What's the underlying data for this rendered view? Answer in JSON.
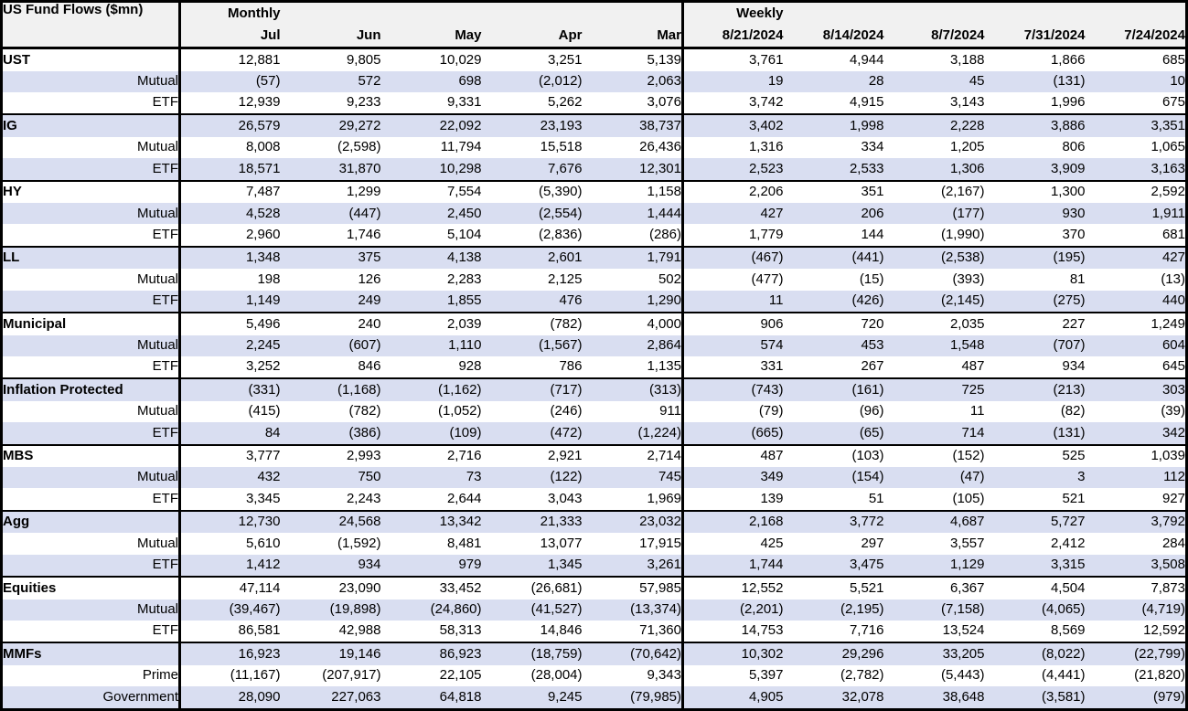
{
  "colors": {
    "row_shade": "#d9def1",
    "header_bg": "#f1f1f1",
    "border": "#000000",
    "text": "#000000",
    "background": "#ffffff"
  },
  "chart_data": {
    "type": "table",
    "title": "US Fund Flows ($mn)",
    "column_groups": [
      {
        "label": "Monthly",
        "columns": [
          "Jul",
          "Jun",
          "May",
          "Apr",
          "Mar"
        ]
      },
      {
        "label": "Weekly",
        "columns": [
          "8/21/2024",
          "8/14/2024",
          "8/7/2024",
          "7/31/2024",
          "7/24/2024"
        ]
      }
    ],
    "groups": [
      {
        "rows": [
          {
            "label": "UST",
            "monthly": [
              "12,881",
              "9,805",
              "10,029",
              "3,251",
              "5,139"
            ],
            "weekly": [
              "3,761",
              "4,944",
              "3,188",
              "1,866",
              "685"
            ]
          },
          {
            "label": "Mutual",
            "monthly": [
              "(57)",
              "572",
              "698",
              "(2,012)",
              "2,063"
            ],
            "weekly": [
              "19",
              "28",
              "45",
              "(131)",
              "10"
            ]
          },
          {
            "label": "ETF",
            "monthly": [
              "12,939",
              "9,233",
              "9,331",
              "5,262",
              "3,076"
            ],
            "weekly": [
              "3,742",
              "4,915",
              "3,143",
              "1,996",
              "675"
            ]
          }
        ]
      },
      {
        "rows": [
          {
            "label": "IG",
            "monthly": [
              "26,579",
              "29,272",
              "22,092",
              "23,193",
              "38,737"
            ],
            "weekly": [
              "3,402",
              "1,998",
              "2,228",
              "3,886",
              "3,351"
            ]
          },
          {
            "label": "Mutual",
            "monthly": [
              "8,008",
              "(2,598)",
              "11,794",
              "15,518",
              "26,436"
            ],
            "weekly": [
              "1,316",
              "334",
              "1,205",
              "806",
              "1,065"
            ]
          },
          {
            "label": "ETF",
            "monthly": [
              "18,571",
              "31,870",
              "10,298",
              "7,676",
              "12,301"
            ],
            "weekly": [
              "2,523",
              "2,533",
              "1,306",
              "3,909",
              "3,163"
            ]
          }
        ]
      },
      {
        "rows": [
          {
            "label": "HY",
            "monthly": [
              "7,487",
              "1,299",
              "7,554",
              "(5,390)",
              "1,158"
            ],
            "weekly": [
              "2,206",
              "351",
              "(2,167)",
              "1,300",
              "2,592"
            ]
          },
          {
            "label": "Mutual",
            "monthly": [
              "4,528",
              "(447)",
              "2,450",
              "(2,554)",
              "1,444"
            ],
            "weekly": [
              "427",
              "206",
              "(177)",
              "930",
              "1,911"
            ]
          },
          {
            "label": "ETF",
            "monthly": [
              "2,960",
              "1,746",
              "5,104",
              "(2,836)",
              "(286)"
            ],
            "weekly": [
              "1,779",
              "144",
              "(1,990)",
              "370",
              "681"
            ]
          }
        ]
      },
      {
        "rows": [
          {
            "label": "LL",
            "monthly": [
              "1,348",
              "375",
              "4,138",
              "2,601",
              "1,791"
            ],
            "weekly": [
              "(467)",
              "(441)",
              "(2,538)",
              "(195)",
              "427"
            ]
          },
          {
            "label": "Mutual",
            "monthly": [
              "198",
              "126",
              "2,283",
              "2,125",
              "502"
            ],
            "weekly": [
              "(477)",
              "(15)",
              "(393)",
              "81",
              "(13)"
            ]
          },
          {
            "label": "ETF",
            "monthly": [
              "1,149",
              "249",
              "1,855",
              "476",
              "1,290"
            ],
            "weekly": [
              "11",
              "(426)",
              "(2,145)",
              "(275)",
              "440"
            ]
          }
        ]
      },
      {
        "rows": [
          {
            "label": "Municipal",
            "monthly": [
              "5,496",
              "240",
              "2,039",
              "(782)",
              "4,000"
            ],
            "weekly": [
              "906",
              "720",
              "2,035",
              "227",
              "1,249"
            ]
          },
          {
            "label": "Mutual",
            "monthly": [
              "2,245",
              "(607)",
              "1,110",
              "(1,567)",
              "2,864"
            ],
            "weekly": [
              "574",
              "453",
              "1,548",
              "(707)",
              "604"
            ]
          },
          {
            "label": "ETF",
            "monthly": [
              "3,252",
              "846",
              "928",
              "786",
              "1,135"
            ],
            "weekly": [
              "331",
              "267",
              "487",
              "934",
              "645"
            ]
          }
        ]
      },
      {
        "rows": [
          {
            "label": "Inflation Protected",
            "monthly": [
              "(331)",
              "(1,168)",
              "(1,162)",
              "(717)",
              "(313)"
            ],
            "weekly": [
              "(743)",
              "(161)",
              "725",
              "(213)",
              "303"
            ]
          },
          {
            "label": "Mutual",
            "monthly": [
              "(415)",
              "(782)",
              "(1,052)",
              "(246)",
              "911"
            ],
            "weekly": [
              "(79)",
              "(96)",
              "11",
              "(82)",
              "(39)"
            ]
          },
          {
            "label": "ETF",
            "monthly": [
              "84",
              "(386)",
              "(109)",
              "(472)",
              "(1,224)"
            ],
            "weekly": [
              "(665)",
              "(65)",
              "714",
              "(131)",
              "342"
            ]
          }
        ]
      },
      {
        "rows": [
          {
            "label": "MBS",
            "monthly": [
              "3,777",
              "2,993",
              "2,716",
              "2,921",
              "2,714"
            ],
            "weekly": [
              "487",
              "(103)",
              "(152)",
              "525",
              "1,039"
            ]
          },
          {
            "label": "Mutual",
            "monthly": [
              "432",
              "750",
              "73",
              "(122)",
              "745"
            ],
            "weekly": [
              "349",
              "(154)",
              "(47)",
              "3",
              "112"
            ]
          },
          {
            "label": "ETF",
            "monthly": [
              "3,345",
              "2,243",
              "2,644",
              "3,043",
              "1,969"
            ],
            "weekly": [
              "139",
              "51",
              "(105)",
              "521",
              "927"
            ]
          }
        ]
      },
      {
        "rows": [
          {
            "label": "Agg",
            "monthly": [
              "12,730",
              "24,568",
              "13,342",
              "21,333",
              "23,032"
            ],
            "weekly": [
              "2,168",
              "3,772",
              "4,687",
              "5,727",
              "3,792"
            ]
          },
          {
            "label": "Mutual",
            "monthly": [
              "5,610",
              "(1,592)",
              "8,481",
              "13,077",
              "17,915"
            ],
            "weekly": [
              "425",
              "297",
              "3,557",
              "2,412",
              "284"
            ]
          },
          {
            "label": "ETF",
            "monthly": [
              "1,412",
              "934",
              "979",
              "1,345",
              "3,261"
            ],
            "weekly": [
              "1,744",
              "3,475",
              "1,129",
              "3,315",
              "3,508"
            ]
          }
        ]
      },
      {
        "rows": [
          {
            "label": "Equities",
            "monthly": [
              "47,114",
              "23,090",
              "33,452",
              "(26,681)",
              "57,985"
            ],
            "weekly": [
              "12,552",
              "5,521",
              "6,367",
              "4,504",
              "7,873"
            ]
          },
          {
            "label": "Mutual",
            "monthly": [
              "(39,467)",
              "(19,898)",
              "(24,860)",
              "(41,527)",
              "(13,374)"
            ],
            "weekly": [
              "(2,201)",
              "(2,195)",
              "(7,158)",
              "(4,065)",
              "(4,719)"
            ]
          },
          {
            "label": "ETF",
            "monthly": [
              "86,581",
              "42,988",
              "58,313",
              "14,846",
              "71,360"
            ],
            "weekly": [
              "14,753",
              "7,716",
              "13,524",
              "8,569",
              "12,592"
            ]
          }
        ]
      },
      {
        "rows": [
          {
            "label": "MMFs",
            "monthly": [
              "16,923",
              "19,146",
              "86,923",
              "(18,759)",
              "(70,642)"
            ],
            "weekly": [
              "10,302",
              "29,296",
              "33,205",
              "(8,022)",
              "(22,799)"
            ]
          },
          {
            "label": "Prime",
            "monthly": [
              "(11,167)",
              "(207,917)",
              "22,105",
              "(28,004)",
              "9,343"
            ],
            "weekly": [
              "5,397",
              "(2,782)",
              "(5,443)",
              "(4,441)",
              "(21,820)"
            ]
          },
          {
            "label": "Government",
            "monthly": [
              "28,090",
              "227,063",
              "64,818",
              "9,245",
              "(79,985)"
            ],
            "weekly": [
              "4,905",
              "32,078",
              "38,648",
              "(3,581)",
              "(979)"
            ]
          }
        ]
      }
    ]
  }
}
